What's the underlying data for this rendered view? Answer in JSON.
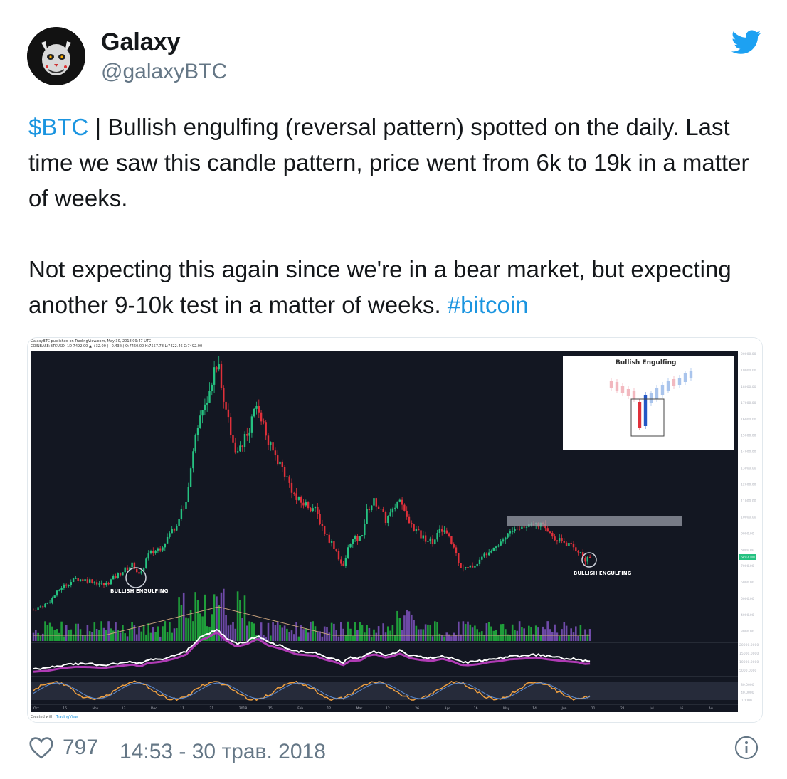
{
  "author": {
    "name": "Galaxy",
    "handle": "@galaxyBTC"
  },
  "tweet": {
    "cashtag": "$BTC",
    "line1_rest": " | Bullish engulfing (reversal pattern) spotted on the daily. Last time we saw this candle pattern, price went from 6k to 19k in a matter of weeks.",
    "line2": "Not expecting this again since we're in a bear market, but expecting another 9-10k test in a matter of weeks. ",
    "hashtag": "#bitcoin"
  },
  "chart": {
    "header_line1": "GalaxyBTC published on TradingView.com, May 30, 2018 09:47 UTC",
    "header_line2": "COINBASE:BTCUSD, 1D 7492.00 ▲ +32.00 (+0.43%) O:7460.00 H:7557.78 L:7422.46 C:7492.00",
    "inset_title": "Bullish Engulfing",
    "annotation_left": "BULLISH ENGULFING",
    "annotation_right": "BULLISH ENGULFING",
    "price_tag": "7492.00",
    "footer_created": "Created with",
    "footer_brand": "TradingView",
    "price_axis": [
      "20000.00",
      "19000.00",
      "18000.00",
      "17000.00",
      "16000.00",
      "15000.00",
      "14000.00",
      "13000.00",
      "12000.00",
      "11000.00",
      "10000.00",
      "9000.00",
      "8000.00",
      "7000.00",
      "6000.00",
      "5000.00",
      "4000.00",
      "3000.00"
    ],
    "osc_axis": [
      "20000.0000",
      "15000.0000",
      "10000.0000",
      "5000.0000"
    ],
    "stoch_axis": [
      "80.0000",
      "40.0000",
      "0.0000"
    ],
    "date_axis": [
      "Oct",
      "16",
      "Nov",
      "13",
      "Dec",
      "11",
      "21",
      "2018",
      "15",
      "Feb",
      "12",
      "Mar",
      "12",
      "26",
      "Apr",
      "16",
      "May",
      "14",
      "Jun",
      "11",
      "21",
      "Jul",
      "16",
      "Au"
    ],
    "colors": {
      "bg": "#131722",
      "up": "#26c281",
      "down": "#e0303a",
      "volume_up": "#1f9e3a",
      "volume_down": "#6e4aa8"
    }
  },
  "footer": {
    "likes": "797",
    "timestamp": "14:53 - 30 трав. 2018"
  }
}
